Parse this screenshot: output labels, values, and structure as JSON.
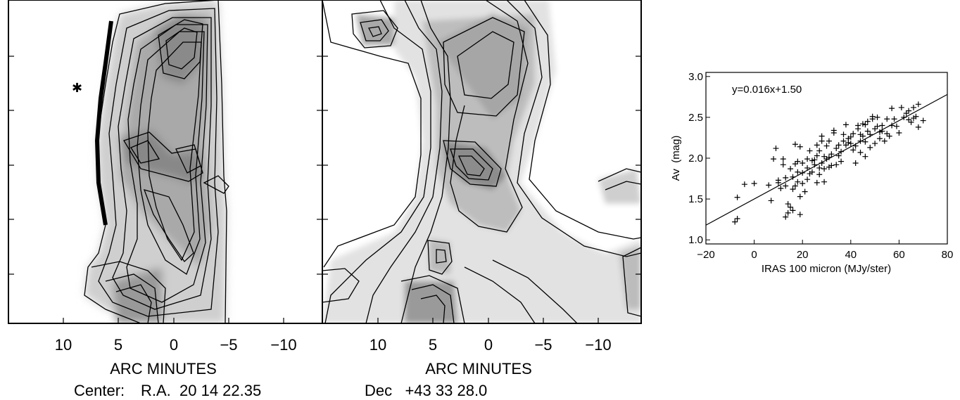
{
  "left_panel": {
    "xticks": [
      "10",
      "5",
      "0",
      "−5",
      "−10"
    ],
    "xlabel": "ARC MINUTES",
    "star_label": "✱"
  },
  "middle_panel": {
    "xticks": [
      "10",
      "5",
      "0",
      "−5",
      "−10"
    ],
    "xlabel": "ARC MINUTES"
  },
  "caption": {
    "center_label": "Center:",
    "ra": "R.A.  20 14 22.35",
    "dec": "Dec   +43 33 28.0"
  },
  "chart_data": [
    {
      "type": "heatmap",
      "title": "",
      "xlabel": "ARC MINUTES",
      "xlim": [
        14,
        -14
      ],
      "xticks": [
        10,
        5,
        0,
        -5,
        -10
      ],
      "description": "grayscale contour map of extinction"
    },
    {
      "type": "heatmap",
      "title": "",
      "xlabel": "ARC MINUTES",
      "xlim": [
        14,
        -14
      ],
      "xticks": [
        10,
        5,
        0,
        -5,
        -10
      ],
      "description": "grayscale contour map of IRAS 100 micron emission"
    },
    {
      "type": "scatter",
      "title": "",
      "xlabel": "IRAS 100 micron (MJy/ster)",
      "ylabel": "Av  (mag)",
      "xlim": [
        -20,
        80
      ],
      "ylim": [
        0.95,
        3.05
      ],
      "xticks": [
        "−20",
        "0",
        "20",
        "40",
        "60",
        "80"
      ],
      "yticks": [
        "1.0",
        "1.5",
        "2.0",
        "2.5",
        "3.0"
      ],
      "annotation": "y=0.016x+1.50",
      "fit": {
        "slope": 0.016,
        "intercept": 1.5
      },
      "points": [
        [
          -8,
          1.22
        ],
        [
          -7,
          1.26
        ],
        [
          -7,
          1.52
        ],
        [
          -4,
          1.68
        ],
        [
          0,
          1.69
        ],
        [
          6,
          1.67
        ],
        [
          7,
          1.48
        ],
        [
          8,
          1.99
        ],
        [
          9,
          2.12
        ],
        [
          10,
          1.73
        ],
        [
          11,
          1.63
        ],
        [
          12,
          1.92
        ],
        [
          12,
          1.99
        ],
        [
          13,
          1.66
        ],
        [
          13,
          1.76
        ],
        [
          13,
          1.28
        ],
        [
          14,
          1.33
        ],
        [
          14,
          1.44
        ],
        [
          15,
          1.4
        ],
        [
          15,
          1.87
        ],
        [
          16,
          1.36
        ],
        [
          16,
          1.62
        ],
        [
          16,
          1.77
        ],
        [
          17,
          1.66
        ],
        [
          17,
          1.93
        ],
        [
          17,
          2.17
        ],
        [
          18,
          1.71
        ],
        [
          18,
          1.83
        ],
        [
          18,
          1.96
        ],
        [
          19,
          1.31
        ],
        [
          19,
          1.53
        ],
        [
          19,
          2.14
        ],
        [
          20,
          1.82
        ],
        [
          20,
          1.94
        ],
        [
          21,
          1.59
        ],
        [
          22,
          1.88
        ],
        [
          22,
          1.99
        ],
        [
          23,
          1.81
        ],
        [
          23,
          2.09
        ],
        [
          24,
          1.83
        ],
        [
          25,
          1.92
        ],
        [
          25,
          1.98
        ],
        [
          26,
          2.03
        ],
        [
          26,
          2.16
        ],
        [
          26,
          1.7
        ],
        [
          27,
          1.88
        ],
        [
          27,
          2.09
        ],
        [
          28,
          1.94
        ],
        [
          28,
          2.21
        ],
        [
          28,
          2.27
        ],
        [
          29,
          1.87
        ],
        [
          29,
          1.71
        ],
        [
          29,
          2.02
        ],
        [
          30,
          1.99
        ],
        [
          30,
          2.15
        ],
        [
          31,
          1.89
        ],
        [
          31,
          2.21
        ],
        [
          32,
          1.91
        ],
        [
          32,
          2.05
        ],
        [
          33,
          2.31
        ],
        [
          33,
          2.34
        ],
        [
          34,
          2.12
        ],
        [
          34,
          1.92
        ],
        [
          35,
          2.03
        ],
        [
          36,
          1.96
        ],
        [
          37,
          2.21
        ],
        [
          37,
          2.29
        ],
        [
          38,
          2.16
        ],
        [
          38,
          2.41
        ],
        [
          39,
          2.24
        ],
        [
          39,
          2.19
        ],
        [
          40,
          2.26
        ],
        [
          40,
          2.18
        ],
        [
          41,
          2.1
        ],
        [
          41,
          2.3
        ],
        [
          42,
          1.94
        ],
        [
          42,
          2.15
        ],
        [
          43,
          2.4
        ],
        [
          43,
          2.36
        ],
        [
          44,
          2.21
        ],
        [
          44,
          2.07
        ],
        [
          45,
          2.42
        ],
        [
          45,
          2.27
        ],
        [
          46,
          2.41
        ],
        [
          46,
          2.2
        ],
        [
          46,
          2.02
        ],
        [
          47,
          2.33
        ],
        [
          47,
          2.45
        ],
        [
          48,
          2.29
        ],
        [
          48,
          2.13
        ],
        [
          49,
          2.48
        ],
        [
          49,
          2.51
        ],
        [
          50,
          2.36
        ],
        [
          50,
          2.18
        ],
        [
          51,
          2.5
        ],
        [
          51,
          2.39
        ],
        [
          52,
          2.32
        ],
        [
          52,
          2.24
        ],
        [
          53,
          2.33
        ],
        [
          53,
          2.4
        ],
        [
          54,
          2.21
        ],
        [
          55,
          2.3
        ],
        [
          55,
          2.48
        ],
        [
          56,
          2.27
        ],
        [
          57,
          2.61
        ],
        [
          58,
          2.48
        ],
        [
          59,
          2.39
        ],
        [
          60,
          2.31
        ],
        [
          61,
          2.62
        ],
        [
          62,
          2.5
        ],
        [
          63,
          2.55
        ],
        [
          64,
          2.58
        ],
        [
          64,
          2.47
        ],
        [
          65,
          2.44
        ],
        [
          66,
          2.49
        ],
        [
          66,
          2.62
        ],
        [
          67,
          2.51
        ],
        [
          68,
          2.66
        ],
        [
          68,
          2.38
        ],
        [
          70,
          2.46
        ],
        [
          36,
          2.08
        ],
        [
          22,
          1.74
        ],
        [
          24,
          1.97
        ],
        [
          10,
          1.7
        ],
        [
          31,
          2.01
        ],
        [
          44,
          2.29
        ],
        [
          57,
          2.4
        ],
        [
          27,
          1.8
        ],
        [
          35,
          2.16
        ],
        [
          20,
          1.69
        ]
      ]
    }
  ]
}
